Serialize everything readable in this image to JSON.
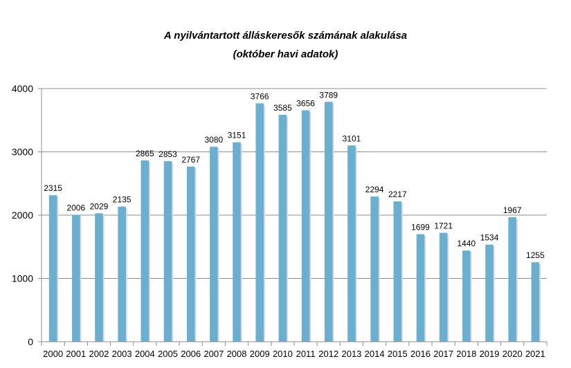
{
  "chart_data": {
    "type": "bar",
    "title": "A nyilvántartott álláskeresők számának alakulása",
    "subtitle": "(október havi adatok)",
    "categories": [
      "2000",
      "2001",
      "2002",
      "2003",
      "2004",
      "2005",
      "2006",
      "2007",
      "2008",
      "2009",
      "2010",
      "2011",
      "2012",
      "2013",
      "2014",
      "2015",
      "2016",
      "2017",
      "2018",
      "2019",
      "2020",
      "2021"
    ],
    "values": [
      2315,
      2006,
      2029,
      2135,
      2865,
      2853,
      2767,
      3080,
      3151,
      3766,
      3585,
      3656,
      3789,
      3101,
      2294,
      2217,
      1699,
      1721,
      1440,
      1534,
      1967,
      1255
    ],
    "ylim": [
      0,
      4000
    ],
    "yticks": [
      0,
      1000,
      2000,
      3000,
      4000
    ],
    "grid": true,
    "bar_color": "#6aaed0",
    "xlabel": "",
    "ylabel": ""
  }
}
